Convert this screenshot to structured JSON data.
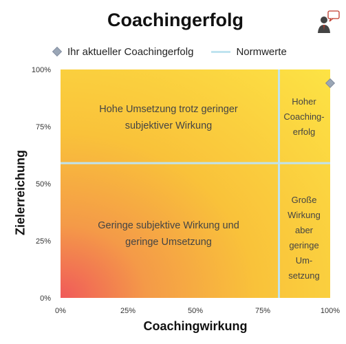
{
  "title": "Coachingerfolg",
  "legend": {
    "current_label": "Ihr aktueller Coachingerfolg",
    "norm_label": "Normwerte"
  },
  "axes": {
    "xlabel": "Coachingwirkung",
    "ylabel": "Zielerreichung",
    "xticks": [
      "0%",
      "25%",
      "50%",
      "75%",
      "100%"
    ],
    "yticks": [
      "0%",
      "25%",
      "50%",
      "75%",
      "100%"
    ]
  },
  "quadrants": {
    "top_left": "Hohe Umsetzung trotz geringer subjektiver Wirkung",
    "bottom_left": "Geringe subjektive Wirkung und geringe Umsetzung",
    "top_right": [
      "Hoher",
      "Coaching-",
      "erfolg"
    ],
    "bottom_right": [
      "Große",
      "Wirkung",
      "aber",
      "geringe",
      "Um-",
      "setzung"
    ]
  },
  "colors": {
    "gradient_low": "#f05a5a",
    "gradient_mid": "#f9c23a",
    "gradient_high": "#fde545",
    "norm_line": "#bfe3ef",
    "marker": "#9aa6b6"
  },
  "chart_data": {
    "type": "scatter",
    "title": "Coachingerfolg",
    "xlabel": "Coachingwirkung",
    "ylabel": "Zielerreichung",
    "xlim": [
      0,
      100
    ],
    "ylim": [
      0,
      100
    ],
    "series": [
      {
        "name": "Ihr aktueller Coachingerfolg",
        "x": [
          100
        ],
        "y": [
          94
        ]
      }
    ],
    "norm_lines": {
      "x": 81,
      "y": 59,
      "name": "Normwerte"
    },
    "legend": "top"
  }
}
